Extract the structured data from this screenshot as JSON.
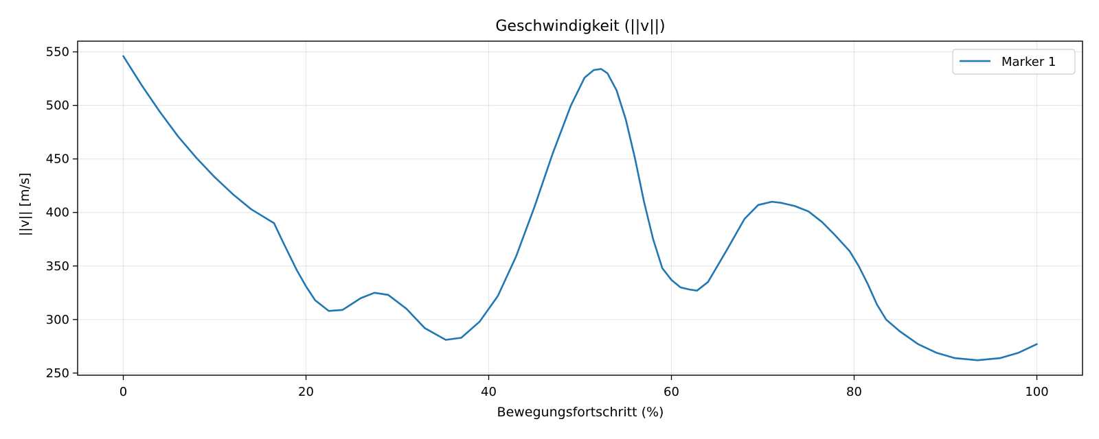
{
  "chart_data": {
    "type": "line",
    "title": "Geschwindigkeit (||v||)",
    "xlabel": "Bewegungsfortschritt (%)",
    "ylabel": "||v|| [m/s]",
    "xlim": [
      -5,
      105
    ],
    "ylim": [
      248,
      560
    ],
    "xticks": [
      0,
      20,
      40,
      60,
      80,
      100
    ],
    "yticks": [
      250,
      300,
      350,
      400,
      450,
      500,
      550
    ],
    "grid": true,
    "legend_position": "top-right",
    "series": [
      {
        "name": "Marker 1",
        "color": "#1f77b4",
        "x": [
          0,
          2,
          4,
          6,
          8,
          10,
          12,
          14,
          16.5,
          17.5,
          19,
          20,
          21,
          22.5,
          24,
          26,
          27.5,
          29,
          31,
          33,
          35.3,
          37,
          39,
          41,
          43,
          45,
          47,
          49,
          50.5,
          51.5,
          52.3,
          53,
          54,
          55,
          56,
          57,
          58,
          59,
          60,
          61,
          62,
          62.8,
          64,
          66,
          68,
          69.5,
          71,
          72,
          73.5,
          75,
          76.5,
          78,
          79.5,
          80.5,
          81.5,
          82.5,
          83.5,
          85,
          87,
          89,
          91,
          93.5,
          96,
          98,
          100
        ],
        "values": [
          546,
          519,
          494,
          471,
          451,
          433,
          417,
          403,
          390,
          372,
          346,
          331,
          318,
          308,
          309,
          320,
          325,
          323,
          310,
          292,
          281,
          283,
          298,
          322,
          359,
          405,
          455,
          500,
          526,
          533,
          534,
          530,
          514,
          487,
          451,
          410,
          375,
          348,
          337,
          330,
          328,
          327,
          335,
          364,
          394,
          407,
          410,
          409,
          406,
          401,
          391,
          378,
          364,
          350,
          333,
          314,
          300,
          289,
          277,
          269,
          264,
          262,
          264,
          269,
          277
        ]
      }
    ]
  }
}
